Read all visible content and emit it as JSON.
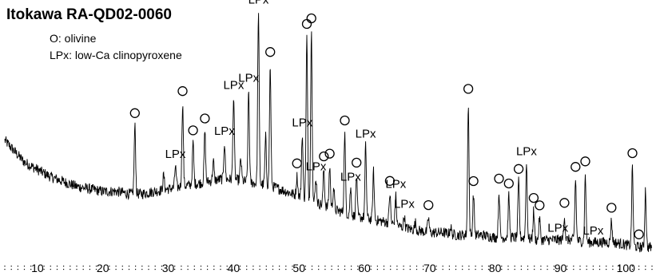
{
  "chart_data": {
    "type": "line",
    "title": "Itokawa RA-QD02-0060",
    "legend": [
      {
        "key": "O",
        "text": "O: olivine"
      },
      {
        "key": "LPx",
        "text": "LPx: low-Ca clinopyroxene"
      }
    ],
    "xlabel": "",
    "ylabel": "",
    "xlim": [
      5,
      104
    ],
    "ylim": [
      0,
      100
    ],
    "grid": false,
    "xticks": [
      10,
      20,
      30,
      40,
      50,
      60,
      70,
      80,
      90,
      100
    ],
    "series": [
      {
        "background": [
          [
            5,
            48
          ],
          [
            6,
            45
          ],
          [
            7,
            42
          ],
          [
            8,
            39
          ],
          [
            10,
            36
          ],
          [
            12,
            33
          ],
          [
            14,
            31
          ],
          [
            16,
            29
          ],
          [
            18,
            28
          ],
          [
            20,
            27
          ],
          [
            22,
            27
          ],
          [
            24,
            26
          ],
          [
            26,
            26
          ],
          [
            28,
            27
          ],
          [
            30,
            28
          ],
          [
            32,
            29
          ],
          [
            34,
            30
          ],
          [
            36,
            31
          ],
          [
            38,
            32
          ],
          [
            40,
            32
          ],
          [
            42,
            31
          ],
          [
            44,
            30
          ],
          [
            46,
            29
          ],
          [
            48,
            27
          ],
          [
            50,
            25
          ],
          [
            52,
            23
          ],
          [
            54,
            21
          ],
          [
            56,
            19
          ],
          [
            58,
            17
          ],
          [
            60,
            16
          ],
          [
            62,
            15
          ],
          [
            64,
            14
          ],
          [
            66,
            12
          ],
          [
            68,
            11
          ],
          [
            70,
            10
          ],
          [
            72,
            10
          ],
          [
            74,
            9
          ],
          [
            76,
            9
          ],
          [
            78,
            9
          ],
          [
            80,
            8
          ],
          [
            82,
            8
          ],
          [
            84,
            8
          ],
          [
            86,
            7
          ],
          [
            88,
            7
          ],
          [
            90,
            7
          ],
          [
            92,
            7
          ],
          [
            94,
            6
          ],
          [
            96,
            6
          ],
          [
            98,
            6
          ],
          [
            100,
            5
          ],
          [
            102,
            4
          ],
          [
            103,
            4
          ],
          [
            104,
            4
          ]
        ],
        "peaks": [
          [
            24.9,
            28
          ],
          [
            29.3,
            6
          ],
          [
            31.1,
            9
          ],
          [
            32.2,
            34
          ],
          [
            33.8,
            17
          ],
          [
            35.6,
            21
          ],
          [
            36.9,
            8
          ],
          [
            38.6,
            15
          ],
          [
            40.0,
            34
          ],
          [
            41.1,
            9
          ],
          [
            42.3,
            38
          ],
          [
            43.8,
            71
          ],
          [
            44.9,
            20
          ],
          [
            45.6,
            50
          ],
          [
            49.7,
            8
          ],
          [
            50.5,
            26
          ],
          [
            51.2,
            67
          ],
          [
            51.9,
            70
          ],
          [
            52.6,
            10
          ],
          [
            53.8,
            15
          ],
          [
            54.7,
            17
          ],
          [
            55.3,
            9
          ],
          [
            57.0,
            33
          ],
          [
            57.9,
            11
          ],
          [
            58.8,
            17
          ],
          [
            60.2,
            30
          ],
          [
            61.4,
            20
          ],
          [
            63.9,
            12
          ],
          [
            64.8,
            12
          ],
          [
            66.1,
            5
          ],
          [
            67.8,
            3
          ],
          [
            69.8,
            6
          ],
          [
            73.2,
            3
          ],
          [
            75.9,
            55
          ],
          [
            76.7,
            17
          ],
          [
            80.6,
            19
          ],
          [
            82.1,
            17
          ],
          [
            83.6,
            23
          ],
          [
            84.8,
            31
          ],
          [
            85.9,
            12
          ],
          [
            86.8,
            9
          ],
          [
            90.6,
            10
          ],
          [
            92.3,
            25
          ],
          [
            93.8,
            28
          ],
          [
            97.8,
            9
          ],
          [
            101.0,
            33
          ],
          [
            103.0,
            24
          ]
        ],
        "noise": 2.2
      }
    ],
    "peak_markers": [
      {
        "x": 24.9,
        "label": "O"
      },
      {
        "x": 31.1,
        "label": "LPx"
      },
      {
        "x": 32.2,
        "label": "O"
      },
      {
        "x": 33.8,
        "label": "O"
      },
      {
        "x": 35.6,
        "label": "O"
      },
      {
        "x": 38.6,
        "label": "LPx"
      },
      {
        "x": 40.0,
        "label": "LPx"
      },
      {
        "x": 42.3,
        "label": "LPx"
      },
      {
        "x": 43.8,
        "label": "LPx"
      },
      {
        "x": 45.6,
        "label": "O"
      },
      {
        "x": 49.7,
        "label": "O"
      },
      {
        "x": 50.5,
        "label": "LPx"
      },
      {
        "x": 51.2,
        "label": "O"
      },
      {
        "x": 51.9,
        "label": "O"
      },
      {
        "x": 52.6,
        "label": "LPx"
      },
      {
        "x": 53.8,
        "label": "O"
      },
      {
        "x": 54.7,
        "label": "O"
      },
      {
        "x": 57.0,
        "label": "O"
      },
      {
        "x": 57.9,
        "label": "LPx"
      },
      {
        "x": 58.8,
        "label": "O"
      },
      {
        "x": 60.2,
        "label": "LPx"
      },
      {
        "x": 63.9,
        "label": "O"
      },
      {
        "x": 64.8,
        "label": "LPx"
      },
      {
        "x": 66.1,
        "label": "LPx"
      },
      {
        "x": 69.8,
        "label": "O"
      },
      {
        "x": 75.9,
        "label": "O"
      },
      {
        "x": 76.7,
        "label": "O"
      },
      {
        "x": 80.6,
        "label": "O"
      },
      {
        "x": 82.1,
        "label": "O"
      },
      {
        "x": 83.6,
        "label": "O"
      },
      {
        "x": 84.8,
        "label": "LPx"
      },
      {
        "x": 85.9,
        "label": "O"
      },
      {
        "x": 86.8,
        "label": "O"
      },
      {
        "x": 89.6,
        "label": "LPx"
      },
      {
        "x": 90.6,
        "label": "O"
      },
      {
        "x": 92.3,
        "label": "O"
      },
      {
        "x": 93.8,
        "label": "O"
      },
      {
        "x": 95.0,
        "label": "LPx"
      },
      {
        "x": 97.8,
        "label": "O"
      },
      {
        "x": 101.0,
        "label": "O"
      },
      {
        "x": 102.0,
        "label": "O"
      }
    ]
  }
}
